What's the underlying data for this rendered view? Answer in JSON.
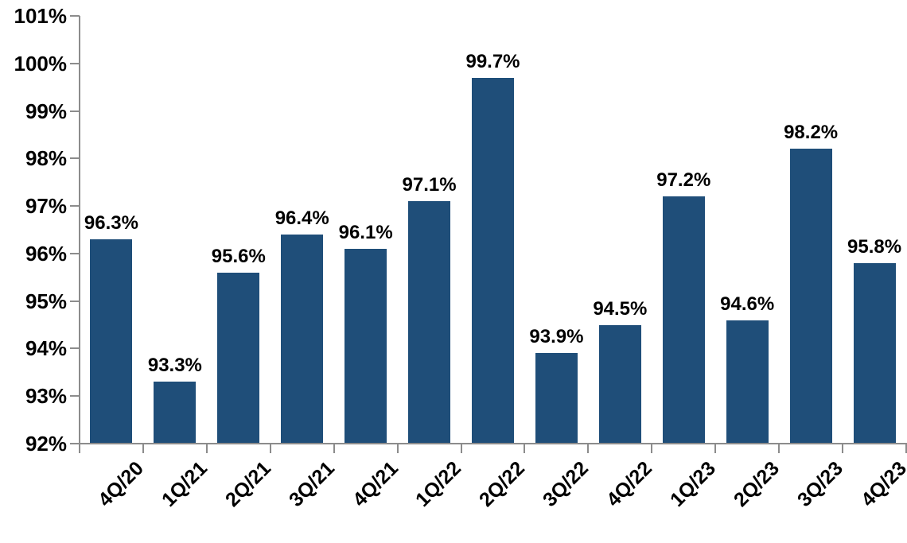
{
  "chart_data": {
    "type": "bar",
    "title": "",
    "xlabel": "",
    "ylabel": "",
    "categories": [
      "4Q/20",
      "1Q/21",
      "2Q/21",
      "3Q/21",
      "4Q/21",
      "1Q/22",
      "2Q/22",
      "3Q/22",
      "4Q/22",
      "1Q/23",
      "2Q/23",
      "3Q/23",
      "4Q/23"
    ],
    "values": [
      96.3,
      93.3,
      95.6,
      96.4,
      96.1,
      97.1,
      99.7,
      93.9,
      94.5,
      97.2,
      94.6,
      98.2,
      95.8
    ],
    "bar_labels": [
      "96.3%",
      "93.3%",
      "95.6%",
      "96.4%",
      "96.1%",
      "97.1%",
      "99.7%",
      "93.9%",
      "94.5%",
      "97.2%",
      "94.6%",
      "98.2%",
      "95.8%"
    ],
    "y_tick_labels": [
      "92%",
      "93%",
      "94%",
      "95%",
      "96%",
      "97%",
      "98%",
      "99%",
      "100%",
      "101%"
    ],
    "y_tick_values": [
      92,
      93,
      94,
      95,
      96,
      97,
      98,
      99,
      100,
      101
    ],
    "ylim": [
      92,
      101
    ],
    "grid": false,
    "legend": false,
    "colors": {
      "bar": "#1F4E79",
      "axis": "#8C8C8C",
      "text": "#000000",
      "background": "#FFFFFF"
    }
  }
}
